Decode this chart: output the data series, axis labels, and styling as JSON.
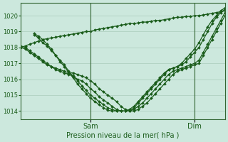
{
  "title": "",
  "xlabel": "Pression niveau de la mer( hPa )",
  "ylabel": "",
  "ylim": [
    1013.5,
    1020.8
  ],
  "yticks": [
    1014,
    1015,
    1016,
    1017,
    1018,
    1019,
    1020
  ],
  "background_color": "#cce8dd",
  "grid_color": "#aaccbb",
  "line_color": "#1a5c1a",
  "marker": "D",
  "markersize": 2.0,
  "linewidth": 0.9,
  "vline_color": "#336633",
  "series": [
    {
      "x": [
        0,
        1,
        2,
        3,
        4,
        5,
        6,
        7,
        8,
        9,
        10,
        11,
        12,
        13,
        14,
        15,
        16,
        17,
        18,
        19,
        20,
        21,
        22,
        23,
        24,
        25,
        26,
        27,
        28,
        29,
        30,
        31,
        32,
        33,
        34,
        35,
        36,
        37,
        38,
        39,
        40,
        41,
        42,
        43,
        44,
        45,
        46,
        47
      ],
      "y": [
        1018.0,
        1017.9,
        1017.7,
        1017.5,
        1017.3,
        1017.1,
        1016.9,
        1016.8,
        1016.7,
        1016.6,
        1016.5,
        1016.4,
        1016.4,
        1016.3,
        1016.2,
        1016.1,
        1015.9,
        1015.7,
        1015.4,
        1015.2,
        1015.0,
        1014.8,
        1014.6,
        1014.3,
        1014.1,
        1014.0,
        1014.0,
        1014.1,
        1014.3,
        1014.5,
        1014.8,
        1015.1,
        1015.4,
        1015.7,
        1016.0,
        1016.3,
        1016.5,
        1016.6,
        1016.7,
        1016.8,
        1016.9,
        1017.0,
        1017.5,
        1018.0,
        1018.5,
        1019.0,
        1019.5,
        1020.0
      ]
    },
    {
      "x": [
        0,
        1,
        2,
        3,
        4,
        5,
        6,
        7,
        8,
        9,
        10,
        11,
        12,
        13,
        14,
        15,
        16,
        17,
        18,
        19,
        20,
        21,
        22,
        23,
        24,
        25,
        26,
        27,
        28,
        29,
        30,
        31,
        32,
        33,
        34,
        35,
        36,
        37,
        38,
        39,
        40,
        41,
        42,
        43,
        44,
        45,
        46,
        47
      ],
      "y": [
        1018.1,
        1018.0,
        1017.8,
        1017.6,
        1017.4,
        1017.2,
        1017.0,
        1016.8,
        1016.6,
        1016.5,
        1016.4,
        1016.3,
        1016.2,
        1016.0,
        1015.9,
        1015.7,
        1015.4,
        1015.2,
        1014.9,
        1014.7,
        1014.5,
        1014.3,
        1014.1,
        1014.0,
        1014.0,
        1014.0,
        1014.1,
        1014.3,
        1014.5,
        1014.8,
        1015.1,
        1015.4,
        1015.7,
        1016.0,
        1016.3,
        1016.5,
        1016.6,
        1016.7,
        1016.8,
        1016.9,
        1017.0,
        1017.2,
        1017.7,
        1018.2,
        1018.7,
        1019.2,
        1019.7,
        1020.2
      ]
    },
    {
      "x": [
        0,
        1,
        2,
        3,
        4,
        5,
        6,
        7,
        8,
        9,
        10,
        11,
        12,
        13,
        14,
        15,
        16,
        17,
        18,
        19,
        20,
        21,
        22,
        23,
        24,
        25,
        26,
        27,
        28,
        29,
        30,
        31,
        32,
        33,
        34,
        35,
        36,
        37,
        38,
        39,
        40,
        41,
        42,
        43,
        44,
        45,
        46,
        47
      ],
      "y": [
        1018.0,
        1018.1,
        1018.2,
        1018.3,
        1018.4,
        1018.5,
        1018.55,
        1018.6,
        1018.65,
        1018.7,
        1018.75,
        1018.8,
        1018.85,
        1018.9,
        1018.95,
        1019.0,
        1019.0,
        1019.1,
        1019.15,
        1019.2,
        1019.25,
        1019.3,
        1019.35,
        1019.4,
        1019.45,
        1019.5,
        1019.5,
        1019.55,
        1019.6,
        1019.6,
        1019.65,
        1019.7,
        1019.7,
        1019.75,
        1019.8,
        1019.85,
        1019.9,
        1019.9,
        1019.95,
        1019.95,
        1020.0,
        1020.0,
        1020.05,
        1020.1,
        1020.15,
        1020.2,
        1020.25,
        1020.3
      ]
    },
    {
      "x": [
        3,
        4,
        5,
        6,
        7,
        8,
        9,
        10,
        11,
        12,
        13,
        14,
        15,
        16,
        17,
        18,
        19,
        20,
        21,
        22,
        23,
        24,
        25,
        26,
        27,
        28,
        29,
        30,
        31,
        32,
        33,
        34,
        35,
        36,
        37,
        38,
        39,
        40,
        41,
        42,
        43,
        44,
        45,
        46,
        47
      ],
      "y": [
        1018.8,
        1018.6,
        1018.3,
        1018.1,
        1017.8,
        1017.5,
        1017.2,
        1016.9,
        1016.5,
        1016.2,
        1015.9,
        1015.6,
        1015.3,
        1015.0,
        1014.8,
        1014.6,
        1014.4,
        1014.2,
        1014.1,
        1014.0,
        1014.0,
        1014.0,
        1014.0,
        1014.2,
        1014.5,
        1014.8,
        1015.1,
        1015.4,
        1015.7,
        1016.0,
        1016.3,
        1016.6,
        1016.7,
        1016.8,
        1016.9,
        1017.1,
        1017.4,
        1017.7,
        1018.0,
        1018.5,
        1019.0,
        1019.5,
        1019.9,
        1020.2,
        1020.4
      ]
    },
    {
      "x": [
        3,
        4,
        5,
        6,
        7,
        8,
        9,
        10,
        11,
        12,
        13,
        14,
        15,
        16,
        17,
        18,
        19,
        20,
        21,
        22,
        23,
        24,
        25,
        26,
        27,
        28,
        29,
        30,
        31,
        32,
        33,
        34,
        35,
        36,
        37,
        38,
        39,
        40,
        41,
        42,
        43,
        44,
        45,
        46,
        47
      ],
      "y": [
        1018.9,
        1018.7,
        1018.5,
        1018.2,
        1017.9,
        1017.5,
        1017.1,
        1016.8,
        1016.4,
        1016.1,
        1015.7,
        1015.4,
        1015.1,
        1014.8,
        1014.6,
        1014.4,
        1014.2,
        1014.05,
        1014.0,
        1014.0,
        1014.0,
        1014.0,
        1014.1,
        1014.3,
        1014.6,
        1014.9,
        1015.2,
        1015.5,
        1015.8,
        1016.1,
        1016.4,
        1016.6,
        1016.7,
        1016.8,
        1017.0,
        1017.3,
        1017.6,
        1017.9,
        1018.3,
        1018.8,
        1019.3,
        1019.7,
        1020.0,
        1020.3,
        1020.5
      ]
    }
  ],
  "n_total": 48,
  "sam_x": 16,
  "dim_x": 40,
  "xtick_labels": [
    "Sam",
    "Dim"
  ],
  "xtick_positions": [
    16,
    40
  ]
}
